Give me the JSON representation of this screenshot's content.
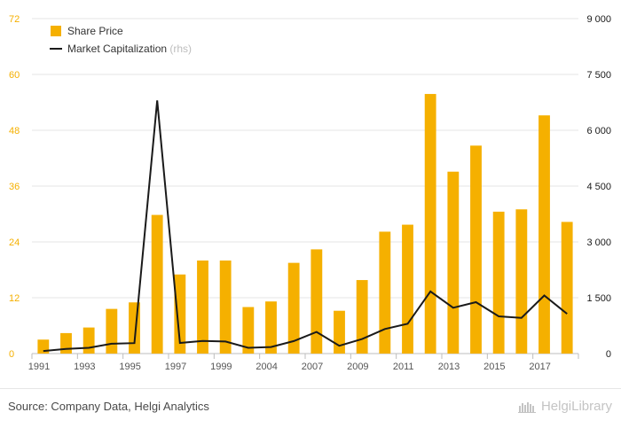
{
  "chart_data": {
    "type": "bar+line",
    "categories": [
      "1991",
      "1992",
      "1993",
      "1994",
      "1995",
      "1996",
      "1997",
      "1998",
      "1999",
      "2003",
      "2004",
      "2005",
      "2007",
      "2008",
      "2009",
      "2010",
      "2011",
      "2012",
      "2013",
      "2014",
      "2015",
      "2016",
      "2017",
      "2018"
    ],
    "x_tick_labels": [
      "1991",
      "1993",
      "1995",
      "1997",
      "1999",
      "2004",
      "2007",
      "2009",
      "2011",
      "2013",
      "2015",
      "2017"
    ],
    "series": [
      {
        "name": "Share Price",
        "type": "bar",
        "axis": "left",
        "color": "#F5B000",
        "values": [
          3.0,
          4.4,
          5.6,
          9.6,
          11.0,
          29.8,
          17.0,
          20.0,
          20.0,
          10.0,
          11.2,
          19.5,
          22.4,
          9.2,
          15.8,
          26.2,
          27.7,
          55.8,
          39.1,
          44.7,
          30.5,
          31.0,
          51.2,
          28.3
        ]
      },
      {
        "name": "Market Capitalization",
        "name_suffix": "(rhs)",
        "type": "line",
        "axis": "right",
        "color": "#1a1a1a",
        "values": [
          70,
          125,
          155,
          265,
          280,
          6800,
          285,
          340,
          325,
          155,
          175,
          335,
          580,
          210,
          390,
          660,
          800,
          1670,
          1230,
          1380,
          1000,
          960,
          1560,
          1070
        ]
      }
    ],
    "left_axis": {
      "min": 0,
      "max": 72,
      "ticks": [
        "0",
        "12",
        "24",
        "36",
        "48",
        "60",
        "72"
      ],
      "tick_values": [
        0,
        12,
        24,
        36,
        48,
        60,
        72
      ],
      "color": "#F5B000"
    },
    "right_axis": {
      "min": 0,
      "max": 9000,
      "ticks": [
        "0",
        "1 500",
        "3 000",
        "4 500",
        "6 000",
        "7 500",
        "9 000"
      ],
      "tick_values": [
        0,
        1500,
        3000,
        4500,
        6000,
        7500,
        9000
      ]
    },
    "grid": true,
    "legend_position": "top-left"
  },
  "legend": {
    "bar_label": "Share Price",
    "line_label": "Market Capitalization",
    "line_suffix": "(rhs)"
  },
  "footer": {
    "source": "Source: Company Data, Helgi Analytics",
    "brand": "HelgiLibrary"
  }
}
